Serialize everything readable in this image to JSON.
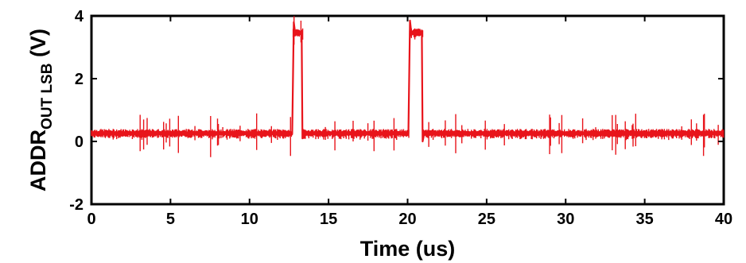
{
  "chart_data": {
    "type": "line",
    "title": "",
    "xlabel": "Time (us)",
    "ylabel_main": "ADDR",
    "ylabel_sub": "OUT LSB",
    "ylabel_unit": " (V)",
    "xlim": [
      0,
      40
    ],
    "ylim": [
      -2,
      4
    ],
    "x_ticks": [
      0,
      5,
      10,
      15,
      20,
      25,
      30,
      35,
      40
    ],
    "y_ticks": [
      -2,
      0,
      2,
      4
    ],
    "grid": false,
    "line_color": "#e8141b",
    "series": [
      {
        "x": [
          0,
          12.7,
          12.8,
          12.9,
          13.0,
          13.1,
          13.2,
          13.3,
          13.35,
          13.45,
          20.05,
          20.15,
          20.25,
          20.4,
          20.6,
          20.8,
          20.9,
          20.95,
          21.05,
          40
        ],
        "y": [
          0.25,
          0.25,
          3.8,
          3.4,
          3.55,
          3.4,
          3.5,
          3.45,
          0.1,
          0.25,
          0.25,
          3.85,
          3.4,
          3.55,
          3.5,
          3.4,
          3.5,
          0.0,
          0.25,
          0.25
        ]
      }
    ]
  }
}
